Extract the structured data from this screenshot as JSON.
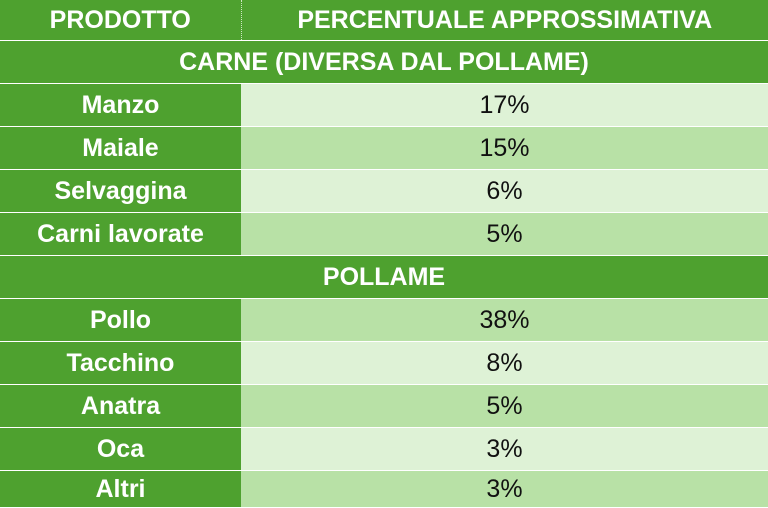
{
  "header": {
    "col1": "PRODOTTO",
    "col2": "PERCENTUALE APPROSSIMATIVA"
  },
  "sections": [
    {
      "title": "CARNE (DIVERSA DAL POLLAME)",
      "rows": [
        {
          "product": "Manzo",
          "percent": "17%"
        },
        {
          "product": "Maiale",
          "percent": "15%"
        },
        {
          "product": "Selvaggina",
          "percent": "6%"
        },
        {
          "product": "Carni lavorate",
          "percent": "5%"
        }
      ]
    },
    {
      "title": "POLLAME",
      "rows": [
        {
          "product": "Pollo",
          "percent": "38%"
        },
        {
          "product": "Tacchino",
          "percent": "8%"
        },
        {
          "product": "Anatra",
          "percent": "5%"
        },
        {
          "product": "Oca",
          "percent": "3%"
        },
        {
          "product": "Altri",
          "percent": "3%"
        }
      ]
    }
  ],
  "colors": {
    "header_green": "#4ea12f",
    "row_light": "#def2d6",
    "row_dark": "#b8e1a6"
  }
}
